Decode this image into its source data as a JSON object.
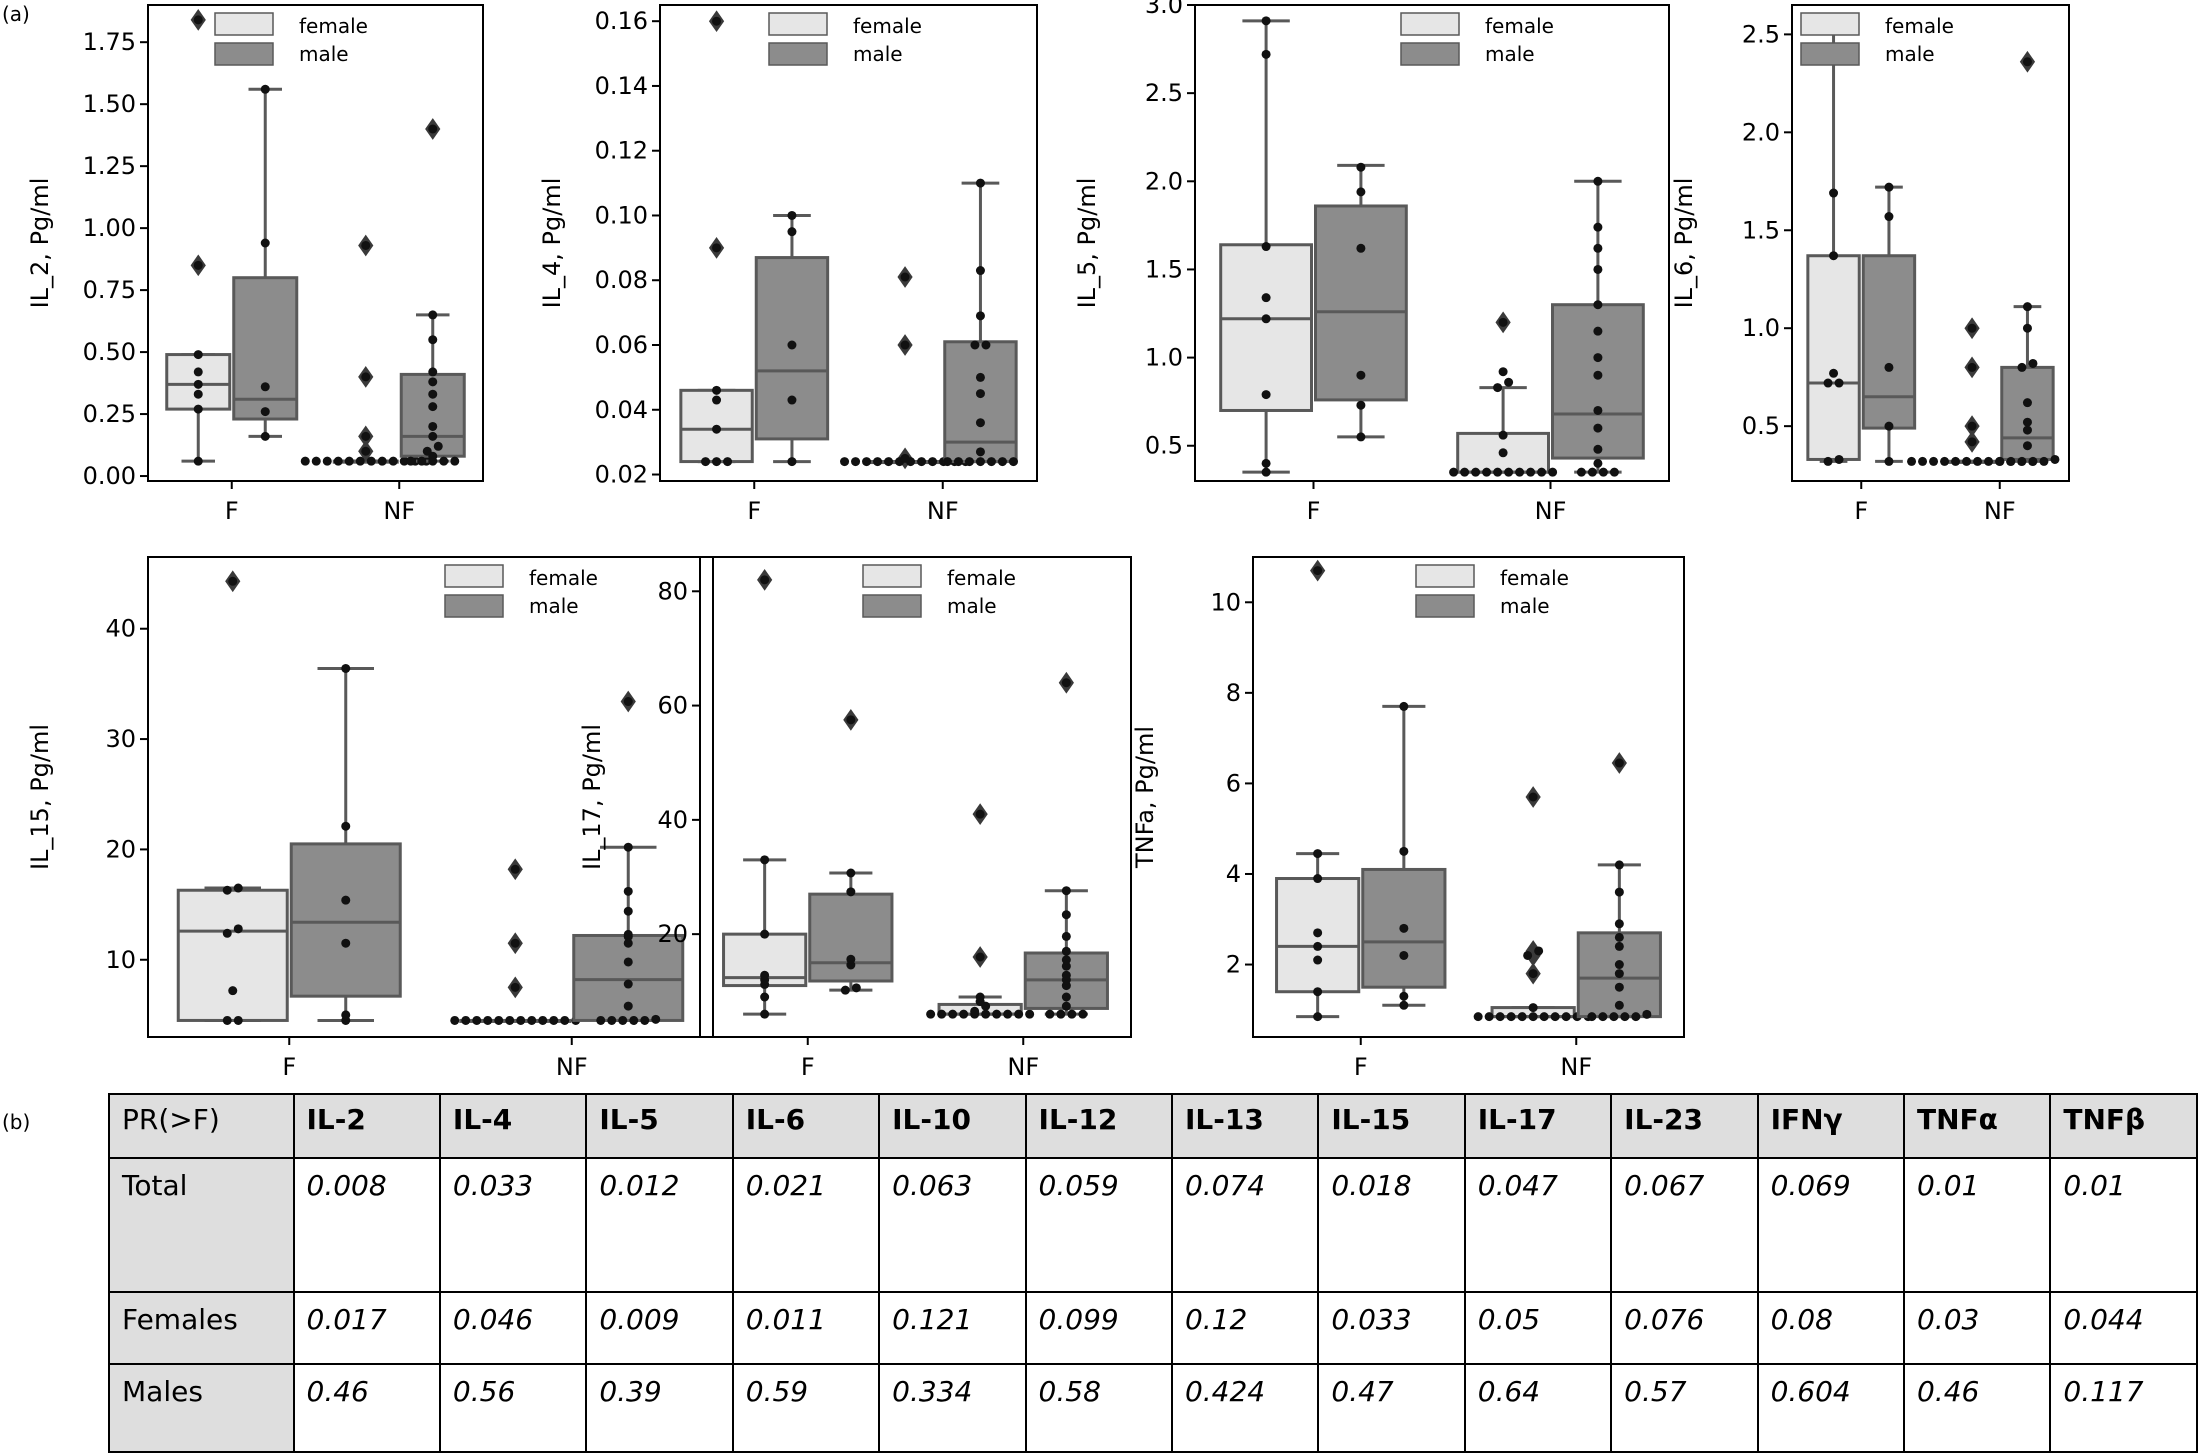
{
  "panel_a_label": "(a)",
  "panel_b_label": "(b)",
  "legend": {
    "female": "female",
    "male": "male"
  },
  "colors": {
    "female": "#e6e6e6",
    "male": "#8c8c8c",
    "line": "#595959",
    "dot": "#111111"
  },
  "chart_data": [
    {
      "type": "box",
      "ylabel": "IL_2, Pg/ml",
      "categories": [
        "F",
        "NF"
      ],
      "ylim": [
        -0.02,
        1.9
      ],
      "yticks": [
        "0.00",
        "0.25",
        "0.50",
        "0.75",
        "1.00",
        "1.25",
        "1.50",
        "1.75"
      ],
      "series": [
        {
          "name": "female",
          "boxes": [
            {
              "q1": 0.27,
              "median": 0.37,
              "q3": 0.49,
              "whisker_low": 0.06,
              "whisker_high": 0.49,
              "outliers": [
                0.85,
                1.84
              ],
              "points": [
                0.06,
                0.27,
                0.33,
                0.37,
                0.42,
                0.49,
                0.85,
                1.84
              ]
            },
            {
              "q1": 0.06,
              "median": 0.06,
              "q3": 0.06,
              "whisker_low": 0.06,
              "whisker_high": 0.06,
              "outliers": [
                0.1,
                0.16,
                0.4,
                0.93
              ],
              "points": [
                0.06,
                0.06,
                0.06,
                0.06,
                0.06,
                0.06,
                0.06,
                0.06,
                0.06,
                0.06,
                0.06,
                0.06,
                0.1,
                0.16,
                0.4,
                0.93
              ]
            }
          ]
        },
        {
          "name": "male",
          "boxes": [
            {
              "q1": 0.23,
              "median": 0.31,
              "q3": 0.8,
              "whisker_low": 0.16,
              "whisker_high": 1.56,
              "outliers": [],
              "points": [
                0.16,
                0.26,
                0.36,
                0.94,
                1.56
              ]
            },
            {
              "q1": 0.08,
              "median": 0.16,
              "q3": 0.41,
              "whisker_low": 0.06,
              "whisker_high": 0.65,
              "outliers": [
                1.4
              ],
              "points": [
                0.06,
                0.06,
                0.06,
                0.06,
                0.06,
                0.08,
                0.1,
                0.12,
                0.16,
                0.2,
                0.28,
                0.33,
                0.38,
                0.42,
                0.55,
                0.65,
                1.4
              ]
            }
          ]
        }
      ]
    },
    {
      "type": "box",
      "ylabel": "IL_4, Pg/ml",
      "categories": [
        "F",
        "NF"
      ],
      "ylim": [
        0.018,
        0.165
      ],
      "yticks": [
        "0.02",
        "0.04",
        "0.06",
        "0.08",
        "0.10",
        "0.12",
        "0.14",
        "0.16"
      ],
      "series": [
        {
          "name": "female",
          "boxes": [
            {
              "q1": 0.024,
              "median": 0.034,
              "q3": 0.046,
              "whisker_low": 0.024,
              "whisker_high": 0.046,
              "outliers": [
                0.09,
                0.16
              ],
              "points": [
                0.024,
                0.024,
                0.024,
                0.034,
                0.043,
                0.046,
                0.09,
                0.16
              ]
            },
            {
              "q1": 0.024,
              "median": 0.024,
              "q3": 0.024,
              "whisker_low": 0.024,
              "whisker_high": 0.024,
              "outliers": [
                0.025,
                0.06,
                0.081
              ],
              "points": [
                0.024,
                0.024,
                0.024,
                0.024,
                0.024,
                0.024,
                0.024,
                0.024,
                0.024,
                0.024,
                0.024,
                0.024,
                0.025,
                0.06,
                0.081
              ]
            }
          ]
        },
        {
          "name": "male",
          "boxes": [
            {
              "q1": 0.031,
              "median": 0.052,
              "q3": 0.087,
              "whisker_low": 0.024,
              "whisker_high": 0.1,
              "outliers": [],
              "points": [
                0.024,
                0.043,
                0.06,
                0.095,
                0.1
              ]
            },
            {
              "q1": 0.024,
              "median": 0.03,
              "q3": 0.061,
              "whisker_low": 0.024,
              "whisker_high": 0.11,
              "outliers": [],
              "points": [
                0.024,
                0.024,
                0.024,
                0.024,
                0.024,
                0.024,
                0.024,
                0.027,
                0.036,
                0.045,
                0.05,
                0.06,
                0.06,
                0.069,
                0.083,
                0.11
              ]
            }
          ]
        }
      ]
    },
    {
      "type": "box",
      "ylabel": "IL_5, Pg/ml",
      "categories": [
        "F",
        "NF"
      ],
      "ylim": [
        0.3,
        3.0
      ],
      "yticks": [
        "0.5",
        "1.0",
        "1.5",
        "2.0",
        "2.5",
        "3.0"
      ],
      "series": [
        {
          "name": "female",
          "boxes": [
            {
              "q1": 0.7,
              "median": 1.22,
              "q3": 1.64,
              "whisker_low": 0.35,
              "whisker_high": 2.91,
              "outliers": [],
              "points": [
                0.35,
                0.4,
                0.79,
                1.22,
                1.34,
                1.63,
                2.72,
                2.91
              ]
            },
            {
              "q1": 0.35,
              "median": 0.35,
              "q3": 0.57,
              "whisker_low": 0.35,
              "whisker_high": 0.83,
              "outliers": [
                1.2
              ],
              "points": [
                0.35,
                0.35,
                0.35,
                0.35,
                0.35,
                0.35,
                0.35,
                0.35,
                0.35,
                0.35,
                0.46,
                0.56,
                0.83,
                0.86,
                0.92,
                1.2
              ]
            }
          ]
        },
        {
          "name": "male",
          "boxes": [
            {
              "q1": 0.76,
              "median": 1.26,
              "q3": 1.86,
              "whisker_low": 0.55,
              "whisker_high": 2.09,
              "outliers": [],
              "points": [
                0.55,
                0.73,
                0.9,
                1.62,
                1.94,
                2.08
              ]
            },
            {
              "q1": 0.43,
              "median": 0.68,
              "q3": 1.3,
              "whisker_low": 0.35,
              "whisker_high": 2.0,
              "outliers": [],
              "points": [
                0.35,
                0.35,
                0.35,
                0.35,
                0.4,
                0.48,
                0.6,
                0.7,
                0.9,
                1.0,
                1.15,
                1.3,
                1.5,
                1.62,
                1.74,
                2.0
              ]
            }
          ]
        }
      ]
    },
    {
      "type": "box",
      "ylabel": "IL_6, Pg/ml",
      "categories": [
        "F",
        "NF"
      ],
      "ylim": [
        0.22,
        2.65
      ],
      "yticks": [
        "0.5",
        "1.0",
        "1.5",
        "2.0",
        "2.5"
      ],
      "series": [
        {
          "name": "female",
          "boxes": [
            {
              "q1": 0.33,
              "median": 0.72,
              "q3": 1.37,
              "whisker_low": 0.32,
              "whisker_high": 2.56,
              "outliers": [],
              "points": [
                0.32,
                0.33,
                0.72,
                0.72,
                0.77,
                1.37,
                1.69,
                2.56
              ]
            },
            {
              "q1": 0.32,
              "median": 0.32,
              "q3": 0.32,
              "whisker_low": 0.32,
              "whisker_high": 0.32,
              "outliers": [
                0.42,
                0.5,
                0.8,
                1.0
              ],
              "points": [
                0.32,
                0.32,
                0.32,
                0.32,
                0.32,
                0.32,
                0.32,
                0.32,
                0.32,
                0.32,
                0.32,
                0.32,
                0.42,
                0.5,
                0.8,
                1.0
              ]
            }
          ]
        },
        {
          "name": "male",
          "boxes": [
            {
              "q1": 0.49,
              "median": 0.65,
              "q3": 1.37,
              "whisker_low": 0.32,
              "whisker_high": 1.72,
              "outliers": [],
              "points": [
                0.32,
                0.5,
                0.8,
                1.57,
                1.72
              ]
            },
            {
              "q1": 0.33,
              "median": 0.44,
              "q3": 0.8,
              "whisker_low": 0.32,
              "whisker_high": 1.11,
              "outliers": [
                2.36
              ],
              "points": [
                0.32,
                0.32,
                0.32,
                0.32,
                0.32,
                0.33,
                0.4,
                0.48,
                0.52,
                0.62,
                0.8,
                0.82,
                1.0,
                1.11,
                2.36
              ]
            }
          ]
        }
      ]
    },
    {
      "type": "box",
      "ylabel": "IL_15, Pg/ml",
      "categories": [
        "F",
        "NF"
      ],
      "ylim": [
        3.0,
        46.5
      ],
      "yticks": [
        "10",
        "20",
        "30",
        "40"
      ],
      "series": [
        {
          "name": "female",
          "boxes": [
            {
              "q1": 4.5,
              "median": 12.6,
              "q3": 16.3,
              "whisker_low": 4.5,
              "whisker_high": 16.5,
              "outliers": [
                44.3
              ],
              "points": [
                4.5,
                4.5,
                7.2,
                12.4,
                12.8,
                16.3,
                16.5,
                44.3
              ]
            },
            {
              "q1": 4.5,
              "median": 4.5,
              "q3": 4.5,
              "whisker_low": 4.5,
              "whisker_high": 4.5,
              "outliers": [
                7.5,
                11.5,
                18.2
              ],
              "points": [
                4.5,
                4.5,
                4.5,
                4.5,
                4.5,
                4.5,
                4.5,
                4.5,
                4.5,
                4.5,
                4.5,
                4.5,
                7.5,
                11.5,
                18.2
              ]
            }
          ]
        },
        {
          "name": "male",
          "boxes": [
            {
              "q1": 6.7,
              "median": 13.4,
              "q3": 20.5,
              "whisker_low": 4.5,
              "whisker_high": 36.4,
              "outliers": [],
              "points": [
                4.5,
                5.0,
                11.5,
                15.4,
                22.1,
                36.4
              ]
            },
            {
              "q1": 4.5,
              "median": 8.2,
              "q3": 12.2,
              "whisker_low": 4.5,
              "whisker_high": 20.2,
              "outliers": [
                33.4
              ],
              "points": [
                4.5,
                4.5,
                4.5,
                4.5,
                4.5,
                4.6,
                5.8,
                7.8,
                9.8,
                11.5,
                12.1,
                12.3,
                14.4,
                16.2,
                20.2,
                33.4
              ]
            }
          ]
        }
      ]
    },
    {
      "type": "box",
      "ylabel": "IL_17, Pg/ml",
      "categories": [
        "F",
        "NF"
      ],
      "ylim": [
        2.0,
        86.0
      ],
      "yticks": [
        "20",
        "40",
        "60",
        "80"
      ],
      "series": [
        {
          "name": "female",
          "boxes": [
            {
              "q1": 11.0,
              "median": 12.4,
              "q3": 20.0,
              "whisker_low": 6.0,
              "whisker_high": 33.0,
              "outliers": [
                82.0
              ],
              "points": [
                6.0,
                9.0,
                11.2,
                12.0,
                12.8,
                20.0,
                33.0,
                82.0
              ]
            },
            {
              "q1": 6.0,
              "median": 6.0,
              "q3": 7.7,
              "whisker_low": 6.0,
              "whisker_high": 9.0,
              "outliers": [
                16.0,
                41.0
              ],
              "points": [
                6.0,
                6.0,
                6.0,
                6.0,
                6.0,
                6.0,
                6.0,
                6.0,
                6.0,
                6.0,
                6.5,
                7.4,
                8.2,
                9.0,
                16.0,
                41.0
              ]
            }
          ]
        },
        {
          "name": "male",
          "boxes": [
            {
              "q1": 11.8,
              "median": 15.0,
              "q3": 27.0,
              "whisker_low": 10.2,
              "whisker_high": 30.7,
              "outliers": [
                57.5
              ],
              "points": [
                10.2,
                10.6,
                14.6,
                15.6,
                27.4,
                30.7,
                57.5
              ]
            },
            {
              "q1": 7.0,
              "median": 12.0,
              "q3": 16.7,
              "whisker_low": 6.0,
              "whisker_high": 27.6,
              "outliers": [
                64.0
              ],
              "points": [
                6.0,
                6.0,
                6.0,
                6.0,
                7.4,
                9.0,
                11.0,
                12.0,
                12.8,
                14.4,
                15.5,
                17.0,
                19.6,
                23.4,
                27.6,
                64.0
              ]
            }
          ]
        }
      ]
    },
    {
      "type": "box",
      "ylabel": "TNFa, Pg/ml",
      "categories": [
        "F",
        "NF"
      ],
      "ylim": [
        0.4,
        11.0
      ],
      "yticks": [
        "2",
        "4",
        "6",
        "8",
        "10"
      ],
      "series": [
        {
          "name": "female",
          "boxes": [
            {
              "q1": 1.4,
              "median": 2.4,
              "q3": 3.9,
              "whisker_low": 0.85,
              "whisker_high": 4.45,
              "outliers": [
                10.7
              ],
              "points": [
                0.85,
                1.4,
                2.1,
                2.4,
                2.7,
                3.9,
                4.45,
                10.7
              ]
            },
            {
              "q1": 0.85,
              "median": 0.85,
              "q3": 1.05,
              "whisker_low": 0.85,
              "whisker_high": 1.05,
              "outliers": [
                1.8,
                2.2,
                2.3,
                5.7
              ],
              "points": [
                0.85,
                0.85,
                0.85,
                0.85,
                0.85,
                0.85,
                0.85,
                0.85,
                0.85,
                0.85,
                0.85,
                1.05,
                1.8,
                2.2,
                2.3,
                5.7
              ]
            }
          ]
        },
        {
          "name": "male",
          "boxes": [
            {
              "q1": 1.5,
              "median": 2.5,
              "q3": 4.1,
              "whisker_low": 1.1,
              "whisker_high": 7.7,
              "outliers": [],
              "points": [
                1.1,
                1.3,
                2.2,
                2.8,
                4.5,
                7.7
              ]
            },
            {
              "q1": 0.85,
              "median": 1.7,
              "q3": 2.7,
              "whisker_low": 0.85,
              "whisker_high": 4.2,
              "outliers": [
                6.45
              ],
              "points": [
                0.85,
                0.85,
                0.85,
                0.85,
                0.85,
                0.9,
                1.1,
                1.5,
                1.8,
                2.0,
                2.4,
                2.6,
                2.9,
                3.6,
                4.2,
                6.45
              ]
            }
          ]
        }
      ]
    }
  ],
  "table": {
    "corner": "PR(>F)",
    "columns": [
      "IL-2",
      "IL-4",
      "IL-5",
      "IL-6",
      "IL-10",
      "IL-12",
      "IL-13",
      "IL-15",
      "IL-17",
      "IL-23",
      "IFNγ",
      "TNFα",
      "TNFβ"
    ],
    "rows": [
      {
        "label": "Total",
        "values": [
          "0.008",
          "0.033",
          "0.012",
          "0.021",
          "0.063",
          "0.059",
          "0.074",
          "0.018",
          "0.047",
          "0.067",
          "0.069",
          "0.01",
          "0.01"
        ]
      },
      {
        "label": "Females",
        "values": [
          "0.017",
          "0.046",
          "0.009",
          "0.011",
          "0.121",
          "0.099",
          "0.12",
          "0.033",
          "0.05",
          "0.076",
          "0.08",
          "0.03",
          "0.044"
        ]
      },
      {
        "label": "Males",
        "values": [
          "0.46",
          "0.56",
          "0.39",
          "0.59",
          "0.334",
          "0.58",
          "0.424",
          "0.47",
          "0.64",
          "0.57",
          "0.604",
          "0.46",
          "0.117"
        ]
      }
    ]
  }
}
